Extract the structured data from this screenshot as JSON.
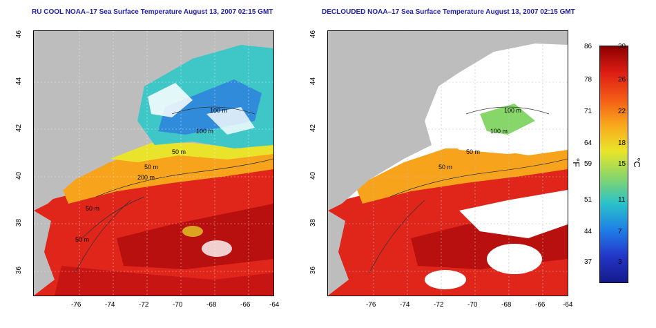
{
  "titles": {
    "left": "RU COOL NOAA–17 Sea Surface Temperature August 13, 2007 02:15 GMT",
    "right": "DECLOUDED NOAA–17 Sea Surface Temperature August 13, 2007 02:15 GMT"
  },
  "axes": {
    "lon_ticks": [
      "-76",
      "-74",
      "-72",
      "-70",
      "-68",
      "-66",
      "-64"
    ],
    "lat_ticks": [
      "46",
      "44",
      "42",
      "40",
      "38",
      "36"
    ]
  },
  "contours": {
    "left": [
      "100 m",
      "100 m",
      "50 m",
      "50 m",
      "200 m",
      "50 m",
      "50 m"
    ],
    "right": [
      "100 m",
      "100 m",
      "50 m",
      "50 m"
    ]
  },
  "colorbar": {
    "f_labels": [
      "86",
      "78",
      "71",
      "64",
      "59",
      "51",
      "44",
      "37"
    ],
    "c_labels": [
      "30",
      "26",
      "22",
      "18",
      "15",
      "11",
      "7",
      "3"
    ],
    "f_unit": "°F",
    "c_unit": "°C",
    "colors": [
      "#8b0000",
      "#dd1d13",
      "#f35a16",
      "#f9a81c",
      "#e9e52a",
      "#87d66a",
      "#2ac2c9",
      "#1e7fe6",
      "#2336c8",
      "#141a8a"
    ]
  }
}
